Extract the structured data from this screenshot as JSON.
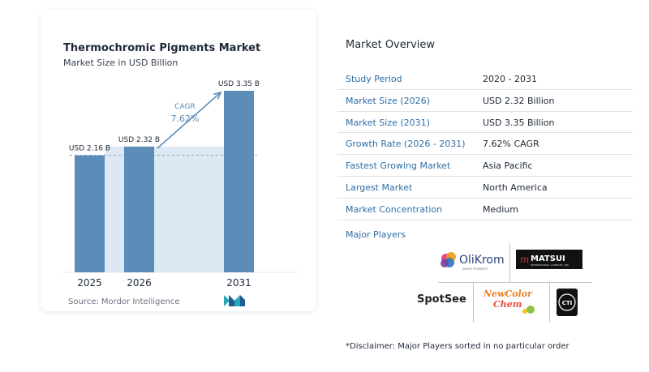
{
  "chart_data": {
    "type": "bar",
    "title": "Thermochromic Pigments Market",
    "subtitle": "Market Size in USD Billion",
    "categories": [
      "2025",
      "2026",
      "2031"
    ],
    "values": [
      2.16,
      2.32,
      3.35
    ],
    "value_labels": [
      "USD 2.16 B",
      "USD 2.32 B",
      "USD 3.35 B"
    ],
    "ylim": [
      0,
      3.5
    ],
    "cagr_label": "CAGR",
    "cagr_value": "7.62%",
    "bar_color": "#5b8db8",
    "shade_color": "#dce8f3",
    "arrow_color": "#5b8db8",
    "source": "Source:  Mordor Intelligence"
  },
  "overview": {
    "title": "Market Overview",
    "rows": [
      {
        "label": "Study Period",
        "value": "2020 - 2031"
      },
      {
        "label": "Market Size (2026)",
        "value": "USD 2.32 Billion"
      },
      {
        "label": "Market Size (2031)",
        "value": "USD 3.35 Billion"
      },
      {
        "label": "Growth Rate (2026 - 2031)",
        "value": "7.62% CAGR"
      },
      {
        "label": "Fastest Growing Market",
        "value": "Asia Pacific"
      },
      {
        "label": "Largest Market",
        "value": "North America"
      },
      {
        "label": "Market Concentration",
        "value": "Medium"
      }
    ],
    "label_color": "#2e6ea6"
  },
  "players": {
    "title": "Major Players",
    "logos": {
      "olikrom": {
        "name": "OliKrom",
        "tagline": "SMART PIGMENTS"
      },
      "matsui": {
        "name": "MATSUI",
        "tagline": "INTERNATIONAL COMPANY, INC."
      },
      "spotsee": {
        "name": "SpotSee"
      },
      "newcolor": {
        "line1": "NewColor",
        "line2": "Chem"
      },
      "cti": {
        "name": "CTI"
      }
    }
  },
  "disclaimer": "*Disclaimer: Major Players sorted in no particular order"
}
